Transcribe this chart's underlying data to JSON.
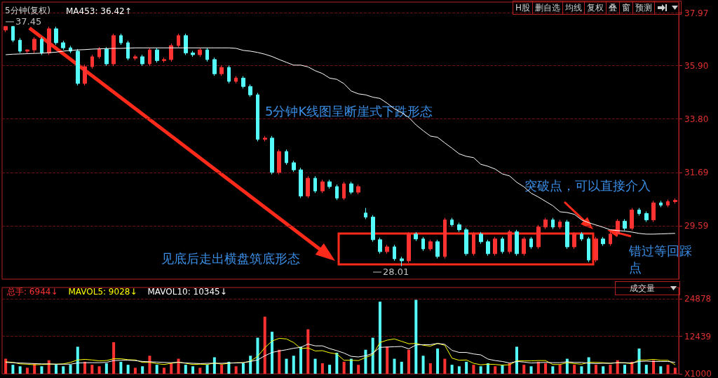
{
  "chart_data": [
    {
      "type": "candlestick",
      "title": "5分钟(复权)",
      "categories": [
        null,
        null,
        null,
        null,
        null,
        null,
        null,
        null,
        null,
        null,
        null,
        null,
        null,
        null,
        null,
        null,
        null,
        null,
        null,
        null,
        null,
        null,
        null,
        null,
        null,
        null,
        null,
        null,
        null,
        null,
        null,
        null,
        null,
        null,
        null,
        null,
        null,
        null,
        null,
        null,
        null,
        null,
        null,
        null,
        null,
        null,
        null,
        null,
        null,
        null,
        null,
        null,
        null,
        null,
        null,
        null,
        null,
        null,
        null,
        null,
        null,
        null,
        null,
        null,
        null,
        null,
        null,
        null,
        null,
        null,
        null,
        null,
        null,
        null,
        null,
        null,
        null,
        null,
        null,
        null,
        null,
        null,
        null,
        null,
        null,
        null,
        null,
        null,
        null,
        null,
        null,
        null,
        null,
        null
      ],
      "ylim": [
        27.5,
        38.4
      ],
      "yticks": [
        37.97,
        {
          "value": 35.9,
          "label": "35.90"
        },
        {
          "value": 33.8,
          "label": "33.80"
        },
        31.69,
        29.59
      ],
      "grid": "y",
      "legend": "top left",
      "series": [
        {
          "ohlc": [
            [
              37.3,
              37.45,
              37.22,
              37.44
            ],
            [
              37.44,
              37.45,
              36.82,
              36.9
            ],
            [
              36.9,
              36.98,
              36.39,
              36.47
            ],
            [
              36.47,
              36.55,
              36.39,
              36.52
            ],
            [
              36.52,
              37.02,
              36.39,
              36.94
            ],
            [
              36.94,
              37.02,
              36.32,
              36.4
            ],
            [
              36.4,
              37.43,
              36.32,
              37.35
            ],
            [
              37.35,
              37.43,
              36.72,
              36.8
            ],
            [
              36.8,
              36.88,
              36.52,
              36.6
            ],
            [
              36.6,
              36.68,
              36.39,
              36.47
            ],
            [
              36.47,
              36.55,
              35.12,
              35.2
            ],
            [
              35.2,
              35.94,
              35.12,
              35.86
            ],
            [
              35.86,
              36.33,
              35.78,
              36.25
            ],
            [
              36.25,
              36.63,
              36.17,
              36.55
            ],
            [
              36.55,
              36.63,
              35.89,
              35.97
            ],
            [
              35.97,
              37.16,
              35.89,
              37.08
            ],
            [
              37.08,
              37.16,
              36.72,
              36.8
            ],
            [
              36.8,
              36.88,
              36.11,
              36.19
            ],
            [
              36.19,
              36.33,
              36.11,
              36.25
            ],
            [
              36.25,
              36.33,
              35.89,
              35.97
            ],
            [
              35.97,
              36.6,
              35.89,
              36.52
            ],
            [
              36.52,
              36.6,
              36.02,
              36.1
            ],
            [
              36.1,
              36.22,
              36.02,
              36.14
            ],
            [
              36.14,
              36.77,
              36.06,
              36.69
            ],
            [
              36.69,
              37.16,
              36.61,
              37.08
            ],
            [
              37.08,
              37.16,
              36.32,
              36.4
            ],
            [
              36.4,
              36.48,
              36.25,
              36.33
            ],
            [
              36.33,
              36.6,
              36.25,
              36.52
            ],
            [
              36.52,
              36.6,
              36.06,
              36.14
            ],
            [
              36.14,
              36.22,
              35.5,
              35.58
            ],
            [
              35.58,
              35.91,
              35.5,
              35.83
            ],
            [
              35.83,
              35.91,
              35.2,
              35.28
            ],
            [
              35.28,
              35.49,
              35.2,
              35.41
            ],
            [
              35.41,
              35.49,
              35.0,
              35.08
            ],
            [
              35.08,
              35.16,
              34.67,
              34.75
            ],
            [
              34.75,
              34.83,
              32.92,
              33.0
            ],
            [
              33.0,
              33.13,
              32.92,
              33.05
            ],
            [
              33.05,
              33.13,
              31.62,
              31.7
            ],
            [
              31.7,
              32.6,
              31.62,
              32.52
            ],
            [
              32.52,
              32.6,
              32.0,
              32.08
            ],
            [
              32.08,
              32.16,
              31.72,
              31.8
            ],
            [
              31.8,
              31.88,
              30.69,
              30.77
            ],
            [
              30.77,
              31.55,
              30.69,
              31.47
            ],
            [
              31.47,
              31.55,
              30.89,
              30.97
            ],
            [
              30.97,
              31.41,
              30.89,
              31.33
            ],
            [
              31.33,
              31.41,
              31.06,
              31.14
            ],
            [
              31.14,
              31.22,
              30.61,
              30.69
            ],
            [
              30.69,
              31.33,
              30.61,
              31.25
            ],
            [
              31.25,
              31.33,
              30.84,
              30.92
            ],
            [
              30.92,
              31.22,
              30.84,
              31.14
            ],
            [
              30.1,
              30.3,
              29.86,
              29.94
            ],
            [
              29.94,
              30.02,
              28.97,
              29.05
            ],
            [
              29.05,
              29.13,
              28.5,
              28.58
            ],
            [
              28.58,
              28.85,
              28.5,
              28.77
            ],
            [
              28.77,
              28.85,
              28.22,
              28.3
            ],
            [
              28.3,
              28.38,
              28.01,
              28.22
            ],
            [
              28.22,
              29.35,
              28.14,
              29.27
            ],
            [
              29.27,
              29.35,
              29.0,
              29.08
            ],
            [
              29.08,
              29.16,
              28.61,
              28.69
            ],
            [
              28.69,
              29.05,
              28.61,
              28.97
            ],
            [
              28.97,
              29.05,
              28.31,
              28.39
            ],
            [
              28.39,
              29.91,
              28.31,
              29.83
            ],
            [
              29.83,
              29.91,
              29.56,
              29.64
            ],
            [
              29.64,
              29.72,
              29.36,
              29.44
            ],
            [
              29.44,
              29.52,
              28.42,
              28.5
            ],
            [
              28.5,
              29.35,
              28.42,
              29.27
            ],
            [
              29.27,
              29.35,
              28.89,
              28.97
            ],
            [
              28.97,
              29.05,
              28.42,
              28.5
            ],
            [
              28.5,
              29.16,
              28.42,
              29.08
            ],
            [
              29.08,
              29.16,
              28.5,
              28.58
            ],
            [
              28.58,
              29.44,
              28.5,
              29.36
            ],
            [
              29.36,
              29.44,
              28.42,
              28.5
            ],
            [
              28.5,
              29.16,
              28.42,
              29.08
            ],
            [
              29.08,
              29.16,
              28.69,
              28.77
            ],
            [
              28.77,
              29.63,
              28.69,
              29.55
            ],
            [
              29.55,
              29.91,
              29.47,
              29.83
            ],
            [
              29.83,
              29.91,
              29.47,
              29.55
            ],
            [
              29.55,
              29.83,
              29.47,
              29.75
            ],
            [
              29.75,
              29.83,
              28.69,
              28.77
            ],
            [
              28.77,
              29.35,
              28.69,
              29.27
            ],
            [
              29.27,
              29.35,
              29.0,
              29.08
            ],
            [
              29.08,
              29.16,
              28.17,
              28.25
            ],
            [
              28.25,
              29.16,
              28.17,
              29.08
            ],
            [
              29.08,
              29.16,
              28.81,
              28.89
            ],
            [
              28.89,
              29.35,
              28.81,
              29.27
            ],
            [
              29.27,
              29.86,
              29.19,
              29.78
            ],
            [
              29.78,
              29.86,
              29.42,
              29.5
            ],
            [
              29.5,
              30.3,
              29.42,
              30.22
            ],
            [
              30.22,
              30.3,
              30.0,
              30.08
            ],
            [
              30.08,
              30.16,
              29.75,
              29.83
            ],
            [
              29.83,
              30.58,
              29.75,
              30.5
            ],
            [
              30.5,
              30.58,
              30.33,
              30.41
            ],
            [
              30.41,
              30.63,
              30.33,
              30.55
            ],
            [
              30.55,
              30.68,
              30.47,
              30.6
            ]
          ],
          "colors": [
            "#ff3232",
            "#54fcfc",
            "#54fcfc",
            "#ff3232",
            "#ff3232",
            "#54fcfc",
            "#ff3232",
            "#54fcfc",
            "#54fcfc",
            "#54fcfc",
            "#54fcfc",
            "#ff3232",
            "#ff3232",
            "#ff3232",
            "#54fcfc",
            "#ff3232",
            "#54fcfc",
            "#54fcfc",
            "#ff3232",
            "#54fcfc",
            "#ff3232",
            "#54fcfc",
            "#ff3232",
            "#ff3232",
            "#ff3232",
            "#54fcfc",
            "#54fcfc",
            "#ff3232",
            "#54fcfc",
            "#54fcfc",
            "#ff3232",
            "#54fcfc",
            "#ff3232",
            "#54fcfc",
            "#54fcfc",
            "#54fcfc",
            "#ff3232",
            "#54fcfc",
            "#ff3232",
            "#54fcfc",
            "#54fcfc",
            "#54fcfc",
            "#ff3232",
            "#54fcfc",
            "#ff3232",
            "#54fcfc",
            "#54fcfc",
            "#ff3232",
            "#54fcfc",
            "#ff3232",
            "#54fcfc",
            "#54fcfc",
            "#54fcfc",
            "#ff3232",
            "#54fcfc",
            "#54fcfc",
            "#ff3232",
            "#54fcfc",
            "#54fcfc",
            "#ff3232",
            "#54fcfc",
            "#ff3232",
            "#54fcfc",
            "#54fcfc",
            "#54fcfc",
            "#ff3232",
            "#54fcfc",
            "#54fcfc",
            "#ff3232",
            "#54fcfc",
            "#ff3232",
            "#54fcfc",
            "#ff3232",
            "#54fcfc",
            "#ff3232",
            "#ff3232",
            "#54fcfc",
            "#ff3232",
            "#54fcfc",
            "#ff3232",
            "#54fcfc",
            "#54fcfc",
            "#ff3232",
            "#54fcfc",
            "#ff3232",
            "#ff3232",
            "#54fcfc",
            "#ff3232",
            "#54fcfc",
            "#54fcfc",
            "#ff3232",
            "#54fcfc",
            "#ff3232",
            "#ff3232"
          ]
        },
        {
          "type": "line",
          "name": "MA453: 36.42↑",
          "color": "#ffffff",
          "values": [
            36.33,
            36.35,
            36.36,
            36.37,
            36.38,
            36.39,
            36.41,
            36.43,
            36.47,
            36.5,
            36.52,
            36.53,
            36.55,
            36.56,
            36.57,
            36.58,
            36.58,
            36.59,
            36.6,
            36.6,
            36.6,
            36.6,
            36.6,
            36.6,
            36.6,
            36.6,
            36.6,
            36.6,
            36.6,
            36.6,
            36.6,
            36.6,
            36.58,
            36.5,
            36.47,
            36.42,
            36.35,
            36.26,
            36.14,
            36.03,
            35.92,
            35.92,
            35.85,
            35.7,
            35.59,
            35.41,
            35.36,
            35.19,
            34.9,
            34.79,
            34.75,
            34.66,
            34.61,
            34.42,
            34.2,
            34.05,
            33.86,
            33.57,
            33.34,
            33.13,
            33.08,
            32.86,
            32.65,
            32.43,
            32.33,
            32.28,
            32.02,
            31.94,
            31.83,
            31.64,
            31.56,
            31.31,
            31.13,
            30.88,
            30.73,
            30.56,
            30.39,
            30.15,
            30.12,
            30.05,
            29.83,
            29.72,
            29.63,
            29.54,
            29.44,
            29.41,
            29.39,
            29.35,
            29.3,
            29.27,
            29.27,
            29.28,
            29.29,
            29.3
          ]
        }
      ],
      "annotations": [
        "5分钟K线图呈断崖式下跌形态",
        "见底后走出横盘筑底形态",
        "突破点，可以直接介入",
        "错过等回踩点",
        "37.45",
        "28.01",
        "H股",
        "删自选",
        "均线",
        "复权",
        "叠",
        "窗",
        "预测"
      ]
    },
    {
      "type": "bar",
      "categories": [
        null,
        null,
        null,
        null,
        null,
        null,
        null,
        null,
        null,
        null,
        null,
        null,
        null,
        null,
        null,
        null,
        null,
        null,
        null,
        null,
        null,
        null,
        null,
        null,
        null,
        null,
        null,
        null,
        null,
        null,
        null,
        null,
        null,
        null,
        null,
        null,
        null,
        null,
        null,
        null,
        null,
        null,
        null,
        null,
        null,
        null,
        null,
        null,
        null,
        null,
        null,
        null,
        null,
        null,
        null,
        null,
        null,
        null,
        null,
        null,
        null,
        null,
        null,
        null,
        null,
        null,
        null,
        null,
        null,
        null,
        null,
        null,
        null,
        null,
        null,
        null,
        null,
        null,
        null,
        null,
        null,
        null,
        null,
        null,
        null,
        null,
        null,
        null,
        null,
        null,
        null,
        null,
        null,
        null
      ],
      "ylim": [
        0,
        28700
      ],
      "yticks": [
        {
          "value": 0,
          "label": "X1000"
        },
        12439,
        24878
      ],
      "grid": "y",
      "legend": "top left",
      "series": [
        {
          "name": "总手: 6944↓",
          "color": "#ff3232",
          "values": [
            5000,
            3000,
            2500,
            2000,
            3500,
            2500,
            4500,
            3000,
            2500,
            3000,
            9000,
            4000,
            3000,
            2500,
            3500,
            10500,
            4000,
            3000,
            2000,
            2500,
            6000,
            3000,
            2000,
            3500,
            5000,
            3000,
            2500,
            2000,
            3000,
            5500,
            3000,
            4000,
            2500,
            3500,
            6000,
            12000,
            19000,
            14000,
            8000,
            5000,
            6000,
            9000,
            14800,
            5000,
            3500,
            3000,
            7000,
            4000,
            5000,
            3000,
            8000,
            12000,
            24000,
            9000,
            5000,
            4000,
            8000,
            24600,
            6000,
            3500,
            8400,
            5000,
            3000,
            2500,
            4000,
            3000,
            2500,
            3500,
            2500,
            3000,
            3500,
            9000,
            3000,
            2500,
            4000,
            3500,
            2500,
            3000,
            5000,
            3000,
            2500,
            5500,
            3000,
            2500,
            3000,
            4500,
            3000,
            4000,
            8400,
            3000,
            4500,
            2500,
            3000,
            2000
          ],
          "colors": [
            "#ff3232",
            "#54fcfc",
            "#54fcfc",
            "#ff3232",
            "#ff3232",
            "#54fcfc",
            "#ff3232",
            "#54fcfc",
            "#54fcfc",
            "#54fcfc",
            "#54fcfc",
            "#ff3232",
            "#ff3232",
            "#ff3232",
            "#54fcfc",
            "#ff3232",
            "#54fcfc",
            "#54fcfc",
            "#ff3232",
            "#54fcfc",
            "#ff3232",
            "#54fcfc",
            "#ff3232",
            "#ff3232",
            "#ff3232",
            "#54fcfc",
            "#54fcfc",
            "#ff3232",
            "#54fcfc",
            "#54fcfc",
            "#ff3232",
            "#54fcfc",
            "#ff3232",
            "#54fcfc",
            "#54fcfc",
            "#54fcfc",
            "#ff3232",
            "#54fcfc",
            "#ff3232",
            "#54fcfc",
            "#54fcfc",
            "#54fcfc",
            "#ff3232",
            "#54fcfc",
            "#ff3232",
            "#54fcfc",
            "#54fcfc",
            "#ff3232",
            "#54fcfc",
            "#ff3232",
            "#54fcfc",
            "#54fcfc",
            "#54fcfc",
            "#ff3232",
            "#54fcfc",
            "#54fcfc",
            "#ff3232",
            "#54fcfc",
            "#54fcfc",
            "#ff3232",
            "#54fcfc",
            "#ff3232",
            "#54fcfc",
            "#54fcfc",
            "#54fcfc",
            "#ff3232",
            "#54fcfc",
            "#54fcfc",
            "#ff3232",
            "#54fcfc",
            "#ff3232",
            "#54fcfc",
            "#ff3232",
            "#54fcfc",
            "#ff3232",
            "#ff3232",
            "#54fcfc",
            "#ff3232",
            "#54fcfc",
            "#ff3232",
            "#54fcfc",
            "#54fcfc",
            "#ff3232",
            "#54fcfc",
            "#ff3232",
            "#ff3232",
            "#54fcfc",
            "#ff3232",
            "#54fcfc",
            "#54fcfc",
            "#ff3232",
            "#54fcfc",
            "#ff3232",
            "#ff3232"
          ]
        },
        {
          "type": "line",
          "name": "MAVOL5: 9028↓",
          "color": "#ffff00",
          "values": [
            4000,
            3800,
            3300,
            3200,
            3000,
            3100,
            3200,
            3200,
            3300,
            3800,
            4600,
            4800,
            4600,
            4300,
            4400,
            5000,
            5000,
            4700,
            4600,
            3800,
            3800,
            3400,
            3100,
            3500,
            3900,
            3500,
            3100,
            3200,
            3100,
            3600,
            3200,
            3500,
            3700,
            3700,
            4200,
            5800,
            8700,
            10900,
            11800,
            11600,
            10400,
            8400,
            8600,
            7600,
            7700,
            7000,
            6600,
            4500,
            4500,
            4400,
            5400,
            6400,
            10400,
            11200,
            11600,
            10800,
            10000,
            10100,
            9500,
            9200,
            10100,
            9500,
            5200,
            4500,
            4600,
            3500,
            3000,
            3200,
            3100,
            2900,
            3000,
            4300,
            4300,
            4300,
            4400,
            4400,
            3100,
            3100,
            3700,
            3400,
            3200,
            3800,
            3800,
            3700,
            3500,
            3700,
            3600,
            3400,
            4600,
            4600,
            4800,
            4500,
            4500,
            3000
          ]
        },
        {
          "type": "line",
          "name": "MAVOL10: 10345↓",
          "color": "#ffffff",
          "values": [
            3800,
            3700,
            3600,
            3500,
            3400,
            3300,
            3300,
            3200,
            3200,
            3200,
            3600,
            3700,
            3700,
            3700,
            3800,
            4400,
            4500,
            4500,
            4400,
            4100,
            4000,
            3900,
            3800,
            3700,
            3800,
            3600,
            3500,
            3400,
            3500,
            3500,
            3500,
            3600,
            3600,
            3700,
            4100,
            4600,
            6000,
            7100,
            7600,
            8000,
            8500,
            8800,
            9900,
            9300,
            9300,
            8400,
            7700,
            6900,
            5800,
            5600,
            6000,
            6800,
            8800,
            8900,
            9000,
            9100,
            8300,
            9600,
            9700,
            9700,
            10100,
            9800,
            7800,
            7100,
            7100,
            6600,
            6300,
            4900,
            4400,
            4100,
            3600,
            4100,
            3900,
            3600,
            3700,
            3800,
            3700,
            3700,
            4000,
            3800,
            3800,
            3500,
            3400,
            3500,
            3500,
            3700,
            3700,
            3600,
            4100,
            4200,
            4100,
            4100,
            4100,
            3800
          ]
        }
      ],
      "annotations": [
        "成交量"
      ]
    }
  ]
}
